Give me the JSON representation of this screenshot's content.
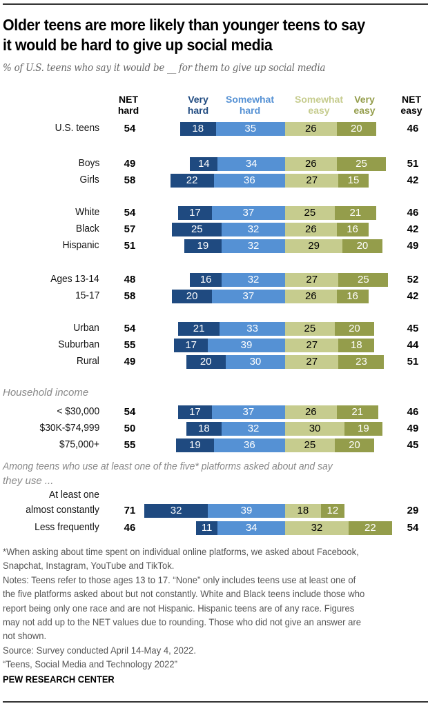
{
  "title_lines": [
    "Older teens are more likely than younger teens to say",
    "it would be hard to give up social media"
  ],
  "subtitle": "% of U.S. teens who say it would be __ for them to give up social media",
  "headers": {
    "net_hard": [
      "NET",
      "hard"
    ],
    "very_hard": [
      "Very",
      "hard"
    ],
    "somewhat_hard": [
      "Somewhat",
      "hard"
    ],
    "somewhat_easy": [
      "Somewhat",
      "easy"
    ],
    "very_easy": [
      "Very",
      "easy"
    ],
    "net_easy": [
      "NET",
      "easy"
    ]
  },
  "colors": {
    "very_hard": "#1f4a80",
    "somewhat_hard": "#5591d4",
    "somewhat_easy": "#c6cc8e",
    "very_easy": "#949d4b"
  },
  "section_labels": {
    "income": "Household income",
    "platforms": [
      "Among teens who use at least one of the five* platforms asked about and say",
      "they use ..."
    ]
  },
  "chart_data": {
    "type": "bar",
    "subtype": "diverging-stacked-horizontal",
    "title": "Older teens are more likely than younger teens to say it would be hard to give up social media",
    "subtitle": "% of U.S. teens who say it would be __ for them to give up social media",
    "legend": [
      "Very hard",
      "Somewhat hard",
      "Somewhat easy",
      "Very easy"
    ],
    "legend_placement": "top",
    "xlabel": "",
    "ylabel": "",
    "categories": [
      "U.S. teens",
      "Boys",
      "Girls",
      "White",
      "Black",
      "Hispanic",
      "Ages 13-14",
      "15-17",
      "Urban",
      "Suburban",
      "Rural",
      "< $30,000",
      "$30K-$74,999",
      "$75,000+",
      "At least one almost constantly",
      "Less frequently"
    ],
    "category_label_lines": [
      [
        "U.S. teens"
      ],
      [
        "Boys"
      ],
      [
        "Girls"
      ],
      [
        "White"
      ],
      [
        "Black"
      ],
      [
        "Hispanic"
      ],
      [
        "Ages 13-14"
      ],
      [
        "15-17"
      ],
      [
        "Urban"
      ],
      [
        "Suburban"
      ],
      [
        "Rural"
      ],
      [
        "< $30,000"
      ],
      [
        "$30K-$74,999"
      ],
      [
        "$75,000+"
      ],
      [
        "At least one",
        "almost constantly"
      ],
      [
        "Less frequently"
      ]
    ],
    "series": [
      {
        "name": "Very hard",
        "values": [
          18,
          14,
          22,
          17,
          25,
          19,
          16,
          20,
          21,
          17,
          20,
          17,
          18,
          19,
          32,
          11
        ]
      },
      {
        "name": "Somewhat hard",
        "values": [
          35,
          34,
          36,
          37,
          32,
          32,
          32,
          37,
          33,
          39,
          30,
          37,
          32,
          36,
          39,
          34
        ]
      },
      {
        "name": "Somewhat easy",
        "values": [
          26,
          26,
          27,
          25,
          26,
          29,
          27,
          26,
          25,
          27,
          27,
          26,
          30,
          25,
          18,
          32
        ]
      },
      {
        "name": "Very easy",
        "values": [
          20,
          25,
          15,
          21,
          16,
          20,
          25,
          16,
          20,
          18,
          23,
          21,
          19,
          20,
          12,
          22
        ]
      }
    ],
    "net_hard": [
      54,
      49,
      58,
      54,
      57,
      51,
      48,
      58,
      54,
      55,
      49,
      54,
      50,
      55,
      71,
      46
    ],
    "net_easy": [
      46,
      51,
      42,
      46,
      42,
      49,
      52,
      42,
      45,
      44,
      51,
      46,
      49,
      45,
      29,
      54
    ]
  },
  "notes": [
    "*When asking about time spent on individual online platforms, we asked about Facebook,",
    "Snapchat, Instagram, YouTube and TikTok.",
    "Notes: Teens refer to those ages 13 to 17. “None” only includes teens use at least one of",
    "the five platforms asked about but not constantly. White and Black teens include those who",
    "report being only one race and are not Hispanic. Hispanic teens are of any race. Figures",
    "may not add up to the NET values due to rounding. Those who did not give an answer are",
    "not shown.",
    "Source: Survey conducted April 14-May 4, 2022.",
    "“Teens, Social Media and Technology 2022”"
  ],
  "org": "PEW RESEARCH CENTER"
}
